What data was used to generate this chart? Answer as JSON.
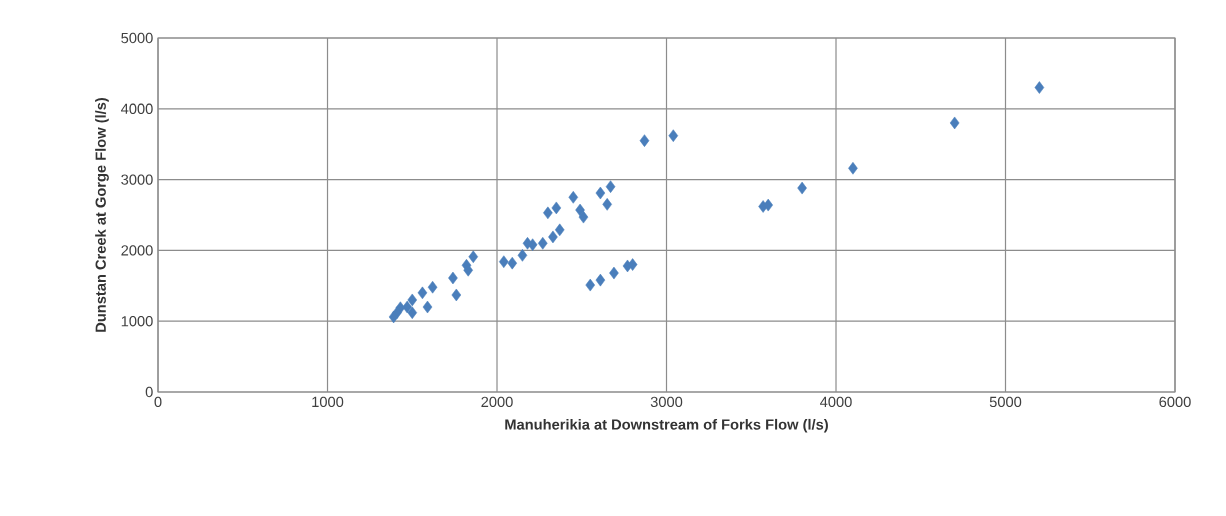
{
  "chart_data": {
    "type": "scatter",
    "xlabel": "Manuherikia at Downstream of Forks Flow (l/s)",
    "ylabel": "Dunstan Creek at Gorge Flow (l/s)",
    "x": [
      5200,
      4700,
      4100,
      3800,
      3570,
      3600,
      2870,
      3040,
      2670,
      2610,
      2650,
      2450,
      2510,
      2490,
      2350,
      2300,
      2370,
      2330,
      2270,
      2210,
      2180,
      2150,
      2090,
      2040,
      1860,
      1820,
      1830,
      1740,
      1760,
      1620,
      1560,
      1590,
      1500,
      1470,
      1430,
      1410,
      1390,
      1500,
      2550,
      2610,
      2690,
      2770,
      2800
    ],
    "values": [
      4300,
      3800,
      3160,
      2880,
      2620,
      2640,
      3550,
      3620,
      2900,
      2810,
      2650,
      2750,
      2470,
      2570,
      2600,
      2530,
      2290,
      2190,
      2100,
      2080,
      2100,
      1930,
      1820,
      1840,
      1910,
      1790,
      1720,
      1610,
      1370,
      1480,
      1400,
      1200,
      1300,
      1200,
      1190,
      1120,
      1060,
      1120,
      1510,
      1580,
      1680,
      1780,
      1800
    ],
    "color": "#4a7ebb",
    "marker": "diamond",
    "xlim": [
      0,
      6000
    ],
    "ylim": [
      0,
      5000
    ],
    "xticks": [
      0,
      1000,
      2000,
      3000,
      4000,
      5000,
      6000
    ],
    "yticks": [
      0,
      1000,
      2000,
      3000,
      4000,
      5000
    ],
    "grid": true
  }
}
